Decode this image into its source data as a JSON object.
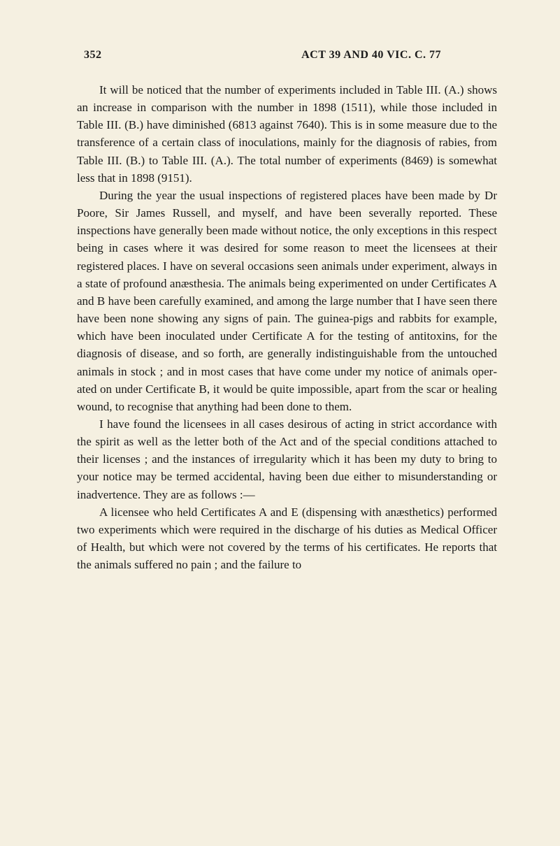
{
  "page_number": "352",
  "header_title": "ACT 39 AND 40 VIC. C. 77",
  "paragraphs": {
    "p1": "It will be noticed that the number of experiments included in Table III. (A.) shows an increase in comparison with the number in 1898 (1511), while those included in Table III. (B.) have diminished (6813 against 7640). This is in some measure due to the transference of a certain class of inocula­tions, mainly for the diagnosis of rabies, from Table III. (B.) to Table III. (A.). The total number of experiments (8469) is somewhat less that in 1898 (9151).",
    "p2": "During the year the usual inspections of registered places have been made by Dr Poore, Sir James Russell, and myself, and have been severally reported. These inspections have generally been made without notice, the only exceptions in this respect being in cases where it was desired for some reason to meet the licensees at their registered places. I have on several occasions seen animals under experiment, always in a state of profound anæsthesia. The animals being experimented on under Certificates A and B have been care­fully examined, and among the large number that I have seen there have been none showing any signs of pain. The guinea-pigs and rabbits for example, which have been inocu­lated under Certificate A for the testing of antitoxins, for the diagnosis of disease, and so forth, are generally indis­tinguishable from the untouched animals in stock ; and in most cases that have come under my notice of animals oper­ated on under Certificate B, it would be quite impossible, apart from the scar or healing wound, to recognise that anything had been done to them.",
    "p3": "I have found the licensees in all cases desirous of acting in strict accordance with the spirit as well as the letter both of the Act and of the special conditions attached to their licenses ; and the instances of irregularity which it has been my duty to bring to your notice may be termed accidental, having been due either to misunderstanding or inadvertence. They are as follows :—",
    "p4": "A licensee who held Certificates A and E (dispensing with anæsthetics) performed two experiments which were required in the discharge of his duties as Medical Officer of Health, but which were not covered by the terms of his certificates. He reports that the animals suffered no pain ; and the failure to"
  },
  "styling": {
    "background_color": "#f5f0e1",
    "text_color": "#1a1a1a",
    "font_family": "Georgia, Times New Roman, serif",
    "body_font_size": 17,
    "header_font_size": 16,
    "line_height": 1.48,
    "text_indent": 32
  }
}
